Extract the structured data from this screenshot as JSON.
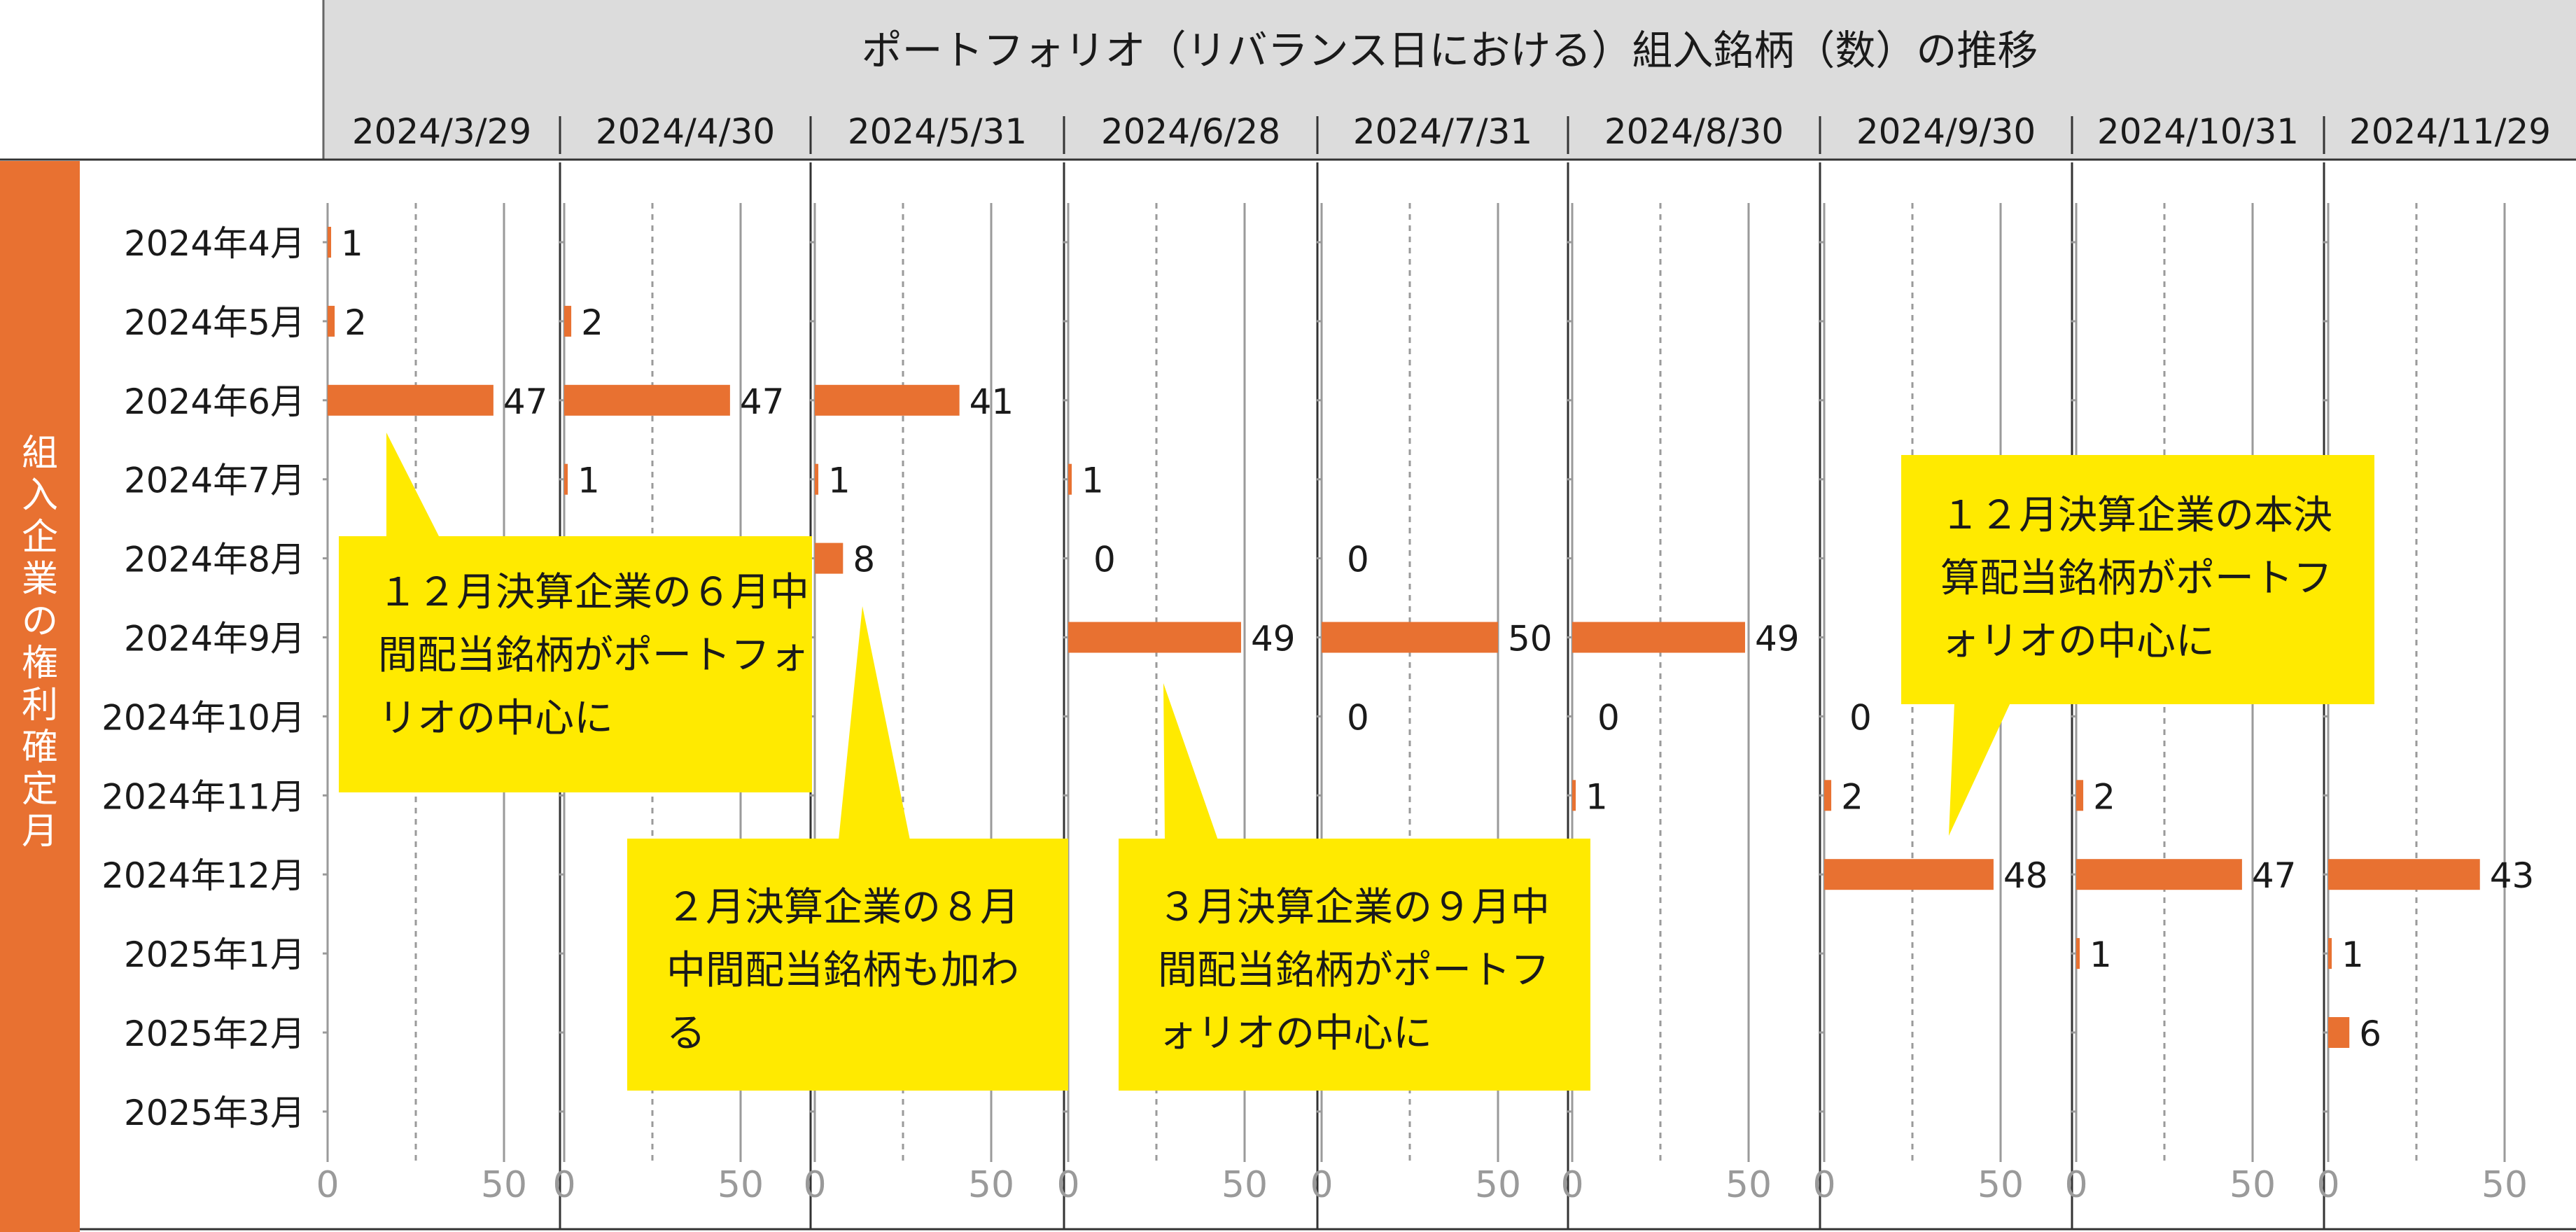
{
  "chart_data": {
    "type": "bar",
    "title": "ポートフォリオ（リバランス日における）組入銘柄（数）の推移",
    "ylabel": "組入企業の権利確定月",
    "categories": [
      "2024年4月",
      "2024年5月",
      "2024年6月",
      "2024年7月",
      "2024年8月",
      "2024年9月",
      "2024年10月",
      "2024年11月",
      "2024年12月",
      "2025年1月",
      "2025年2月",
      "2025年3月"
    ],
    "xlim": [
      0,
      50
    ],
    "x_ticks": [
      "0",
      "50"
    ],
    "grid": true,
    "panels": [
      {
        "date": "2024/3/29",
        "values": [
          1,
          2,
          47,
          null,
          null,
          null,
          null,
          null,
          null,
          null,
          null,
          null
        ]
      },
      {
        "date": "2024/4/30",
        "values": [
          null,
          2,
          47,
          1,
          null,
          null,
          null,
          null,
          null,
          null,
          null,
          null
        ]
      },
      {
        "date": "2024/5/31",
        "values": [
          null,
          null,
          41,
          1,
          8,
          null,
          null,
          null,
          null,
          null,
          null,
          null
        ]
      },
      {
        "date": "2024/6/28",
        "values": [
          null,
          null,
          null,
          1,
          0,
          49,
          null,
          null,
          null,
          null,
          null,
          null
        ]
      },
      {
        "date": "2024/7/31",
        "values": [
          null,
          null,
          null,
          null,
          0,
          50,
          0,
          null,
          null,
          null,
          null,
          null
        ]
      },
      {
        "date": "2024/8/30",
        "values": [
          null,
          null,
          null,
          null,
          null,
          49,
          0,
          1,
          null,
          null,
          null,
          null
        ]
      },
      {
        "date": "2024/9/30",
        "values": [
          null,
          null,
          null,
          null,
          null,
          null,
          0,
          2,
          48,
          null,
          null,
          null
        ]
      },
      {
        "date": "2024/10/31",
        "values": [
          null,
          null,
          null,
          null,
          null,
          null,
          null,
          2,
          47,
          1,
          null,
          null
        ]
      },
      {
        "date": "2024/11/29",
        "values": [
          null,
          null,
          null,
          null,
          null,
          null,
          null,
          null,
          43,
          1,
          6,
          null
        ]
      }
    ],
    "bar_color": "#e87131",
    "annotations": [
      "１２月決算企業の６月中間配当銘柄がポートフォリオの中心に",
      "２月決算企業の８月中間配当銘柄も加わる",
      "３月決算企業の９月中間配当銘柄がポートフォリオの中心に",
      "１２月決算企業の本決算配当銘柄がポートフォリオの中心に"
    ]
  }
}
